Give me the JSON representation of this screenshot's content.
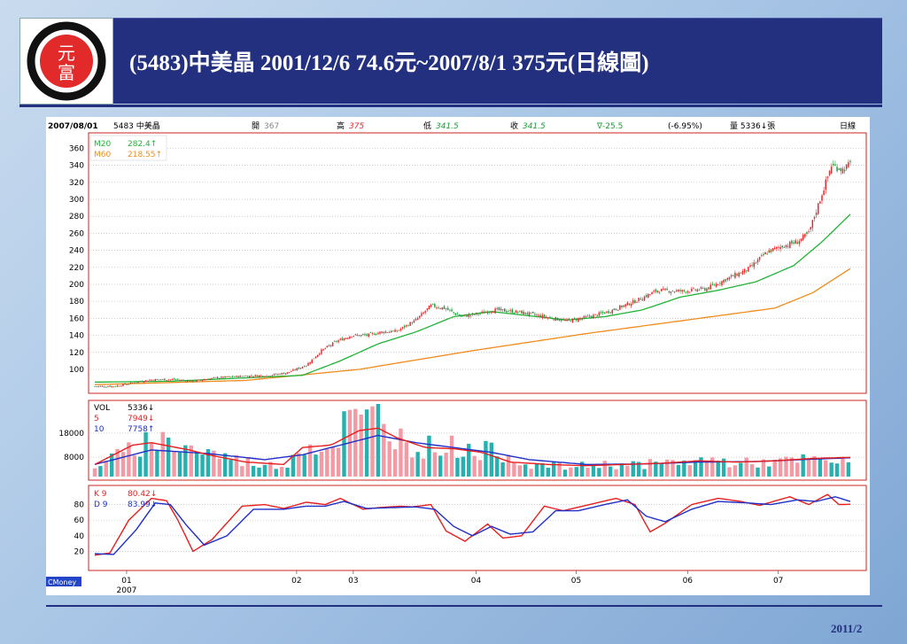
{
  "slide": {
    "title": "(5483)中美晶 2001/12/6  74.6元~2007/8/1 375元(日線圖)",
    "footer_date": "2011/2",
    "logo_text_top": "元",
    "logo_text_bottom": "富"
  },
  "colors": {
    "up": "#e8262b",
    "down": "#1b9a3a",
    "ma20": "#22b336",
    "ma60": "#f08c1e",
    "vol_bar": "#f49aa4",
    "vol_bar_down": "#27b0b0",
    "vol_ma5": "#e81e1e",
    "vol_ma10": "#1f2fc8",
    "k": "#e81e1e",
    "d": "#1f2fc8"
  },
  "chart_data": {
    "type": "candlestick",
    "header": {
      "date": "2007/08/01",
      "stock": "5483 中美晶",
      "open_label": "開",
      "open": "367",
      "high_label": "高",
      "high": "375",
      "low_label": "低",
      "low": "341.5",
      "close_label": "收",
      "close": "341.5",
      "change": "∇-25.5",
      "change_pct": "(-6.95%)",
      "volume_label": "量 5336↓張",
      "period": "日線"
    },
    "price": {
      "ylim": [
        76,
        374
      ],
      "yticks": [
        100,
        120,
        140,
        160,
        180,
        200,
        220,
        240,
        260,
        280,
        300,
        320,
        340,
        360
      ],
      "legend": [
        {
          "name": "M20",
          "value": "282.4↑"
        },
        {
          "name": "M60",
          "value": "218.55↑"
        }
      ],
      "close_anchors": [
        [
          0,
          80
        ],
        [
          10,
          80
        ],
        [
          20,
          84
        ],
        [
          30,
          88
        ],
        [
          42,
          88
        ],
        [
          52,
          86
        ],
        [
          64,
          90
        ],
        [
          78,
          92
        ],
        [
          92,
          93
        ],
        [
          102,
          96
        ],
        [
          112,
          105
        ],
        [
          120,
          122
        ],
        [
          128,
          133
        ],
        [
          136,
          140
        ],
        [
          144,
          140
        ],
        [
          152,
          144
        ],
        [
          160,
          145
        ],
        [
          170,
          158
        ],
        [
          178,
          175
        ],
        [
          185,
          172
        ],
        [
          194,
          162
        ],
        [
          202,
          165
        ],
        [
          212,
          170
        ],
        [
          226,
          167
        ],
        [
          238,
          162
        ],
        [
          250,
          157
        ],
        [
          262,
          162
        ],
        [
          272,
          168
        ],
        [
          286,
          180
        ],
        [
          298,
          193
        ],
        [
          312,
          192
        ],
        [
          324,
          195
        ],
        [
          336,
          208
        ],
        [
          346,
          218
        ],
        [
          356,
          238
        ],
        [
          364,
          245
        ],
        [
          372,
          250
        ],
        [
          378,
          260
        ],
        [
          384,
          300
        ],
        [
          390,
          340
        ],
        [
          396,
          335
        ],
        [
          400,
          341.5
        ]
      ],
      "ma20_anchors": [
        [
          0,
          85
        ],
        [
          40,
          86
        ],
        [
          80,
          90
        ],
        [
          110,
          93
        ],
        [
          130,
          110
        ],
        [
          150,
          130
        ],
        [
          170,
          144
        ],
        [
          190,
          162
        ],
        [
          210,
          168
        ],
        [
          230,
          163
        ],
        [
          250,
          158
        ],
        [
          270,
          162
        ],
        [
          290,
          170
        ],
        [
          310,
          185
        ],
        [
          330,
          193
        ],
        [
          350,
          203
        ],
        [
          370,
          222
        ],
        [
          385,
          250
        ],
        [
          400,
          282.4
        ]
      ],
      "ma60_anchors": [
        [
          0,
          82
        ],
        [
          80,
          87
        ],
        [
          140,
          100
        ],
        [
          200,
          122
        ],
        [
          260,
          142
        ],
        [
          320,
          160
        ],
        [
          360,
          172
        ],
        [
          380,
          190
        ],
        [
          400,
          218.55
        ]
      ]
    },
    "volume": {
      "ylim": [
        0,
        30000
      ],
      "yticks": [
        8000,
        18000
      ],
      "legend": [
        {
          "name": "VOL",
          "value": "5336↓"
        },
        {
          "name": "5",
          "value": "7949↓"
        },
        {
          "name": "10",
          "value": "7758↑"
        }
      ],
      "vol_anchors": [
        [
          0,
          4500
        ],
        [
          20,
          11000
        ],
        [
          30,
          16000
        ],
        [
          50,
          12000
        ],
        [
          60,
          10000
        ],
        [
          80,
          6000
        ],
        [
          100,
          4000
        ],
        [
          110,
          14000
        ],
        [
          125,
          11000
        ],
        [
          135,
          26000
        ],
        [
          140,
          20000
        ],
        [
          150,
          27000
        ],
        [
          158,
          18000
        ],
        [
          170,
          12000
        ],
        [
          185,
          13000
        ],
        [
          200,
          11000
        ],
        [
          215,
          10000
        ],
        [
          230,
          5000
        ],
        [
          250,
          4000
        ],
        [
          270,
          5000
        ],
        [
          290,
          5000
        ],
        [
          310,
          6000
        ],
        [
          325,
          7000
        ],
        [
          340,
          5500
        ],
        [
          360,
          6000
        ],
        [
          380,
          7000
        ],
        [
          400,
          5336
        ]
      ],
      "ma5_anchors": [
        [
          0,
          5000
        ],
        [
          20,
          13000
        ],
        [
          30,
          14000
        ],
        [
          50,
          11000
        ],
        [
          60,
          9000
        ],
        [
          80,
          6000
        ],
        [
          100,
          5000
        ],
        [
          110,
          12000
        ],
        [
          125,
          13000
        ],
        [
          140,
          19000
        ],
        [
          150,
          20000
        ],
        [
          160,
          16000
        ],
        [
          175,
          12000
        ],
        [
          190,
          11500
        ],
        [
          205,
          10000
        ],
        [
          220,
          6000
        ],
        [
          240,
          5000
        ],
        [
          260,
          4500
        ],
        [
          280,
          5000
        ],
        [
          300,
          5500
        ],
        [
          320,
          6500
        ],
        [
          340,
          6000
        ],
        [
          360,
          6500
        ],
        [
          380,
          7500
        ],
        [
          400,
          7949
        ]
      ],
      "ma10_anchors": [
        [
          0,
          5000
        ],
        [
          30,
          11000
        ],
        [
          60,
          9500
        ],
        [
          90,
          7000
        ],
        [
          110,
          9000
        ],
        [
          130,
          13000
        ],
        [
          150,
          17000
        ],
        [
          170,
          14000
        ],
        [
          190,
          12000
        ],
        [
          210,
          10000
        ],
        [
          230,
          7000
        ],
        [
          260,
          5000
        ],
        [
          290,
          5200
        ],
        [
          320,
          6000
        ],
        [
          350,
          6200
        ],
        [
          380,
          7200
        ],
        [
          400,
          7758
        ]
      ]
    },
    "kd": {
      "ylim": [
        0,
        100
      ],
      "yticks": [
        20,
        40,
        60,
        80
      ],
      "legend": [
        {
          "name": "K 9",
          "value": "80.42↓"
        },
        {
          "name": "D 9",
          "value": "83.99↓"
        }
      ],
      "k_anchors": [
        [
          0,
          15
        ],
        [
          8,
          18
        ],
        [
          18,
          60
        ],
        [
          30,
          88
        ],
        [
          38,
          85
        ],
        [
          44,
          60
        ],
        [
          52,
          20
        ],
        [
          62,
          35
        ],
        [
          78,
          78
        ],
        [
          90,
          80
        ],
        [
          100,
          75
        ],
        [
          112,
          83
        ],
        [
          122,
          80
        ],
        [
          130,
          88
        ],
        [
          142,
          74
        ],
        [
          150,
          76
        ],
        [
          162,
          78
        ],
        [
          168,
          77
        ],
        [
          178,
          80
        ],
        [
          186,
          46
        ],
        [
          196,
          33
        ],
        [
          208,
          55
        ],
        [
          216,
          37
        ],
        [
          226,
          40
        ],
        [
          238,
          78
        ],
        [
          248,
          72
        ],
        [
          262,
          80
        ],
        [
          276,
          88
        ],
        [
          286,
          80
        ],
        [
          294,
          45
        ],
        [
          302,
          56
        ],
        [
          316,
          80
        ],
        [
          330,
          88
        ],
        [
          342,
          84
        ],
        [
          352,
          79
        ],
        [
          368,
          90
        ],
        [
          378,
          80
        ],
        [
          388,
          93
        ],
        [
          394,
          80
        ],
        [
          400,
          80.42
        ]
      ],
      "d_anchors": [
        [
          0,
          17
        ],
        [
          10,
          16
        ],
        [
          22,
          48
        ],
        [
          32,
          82
        ],
        [
          40,
          80
        ],
        [
          48,
          55
        ],
        [
          58,
          28
        ],
        [
          70,
          40
        ],
        [
          84,
          74
        ],
        [
          100,
          74
        ],
        [
          112,
          78
        ],
        [
          122,
          78
        ],
        [
          132,
          84
        ],
        [
          144,
          75
        ],
        [
          156,
          76
        ],
        [
          170,
          77
        ],
        [
          180,
          74
        ],
        [
          190,
          52
        ],
        [
          200,
          40
        ],
        [
          210,
          52
        ],
        [
          220,
          42
        ],
        [
          232,
          45
        ],
        [
          244,
          72
        ],
        [
          256,
          72
        ],
        [
          270,
          80
        ],
        [
          282,
          86
        ],
        [
          292,
          65
        ],
        [
          302,
          58
        ],
        [
          316,
          74
        ],
        [
          330,
          84
        ],
        [
          346,
          82
        ],
        [
          358,
          80
        ],
        [
          372,
          86
        ],
        [
          382,
          84
        ],
        [
          392,
          90
        ],
        [
          400,
          83.99
        ]
      ]
    },
    "x_axis": {
      "labels": [
        {
          "text": "01",
          "year": "2007"
        },
        {
          "text": "02",
          "year": ""
        },
        {
          "text": "03",
          "year": ""
        },
        {
          "text": "04",
          "year": ""
        },
        {
          "text": "05",
          "year": ""
        },
        {
          "text": "06",
          "year": ""
        },
        {
          "text": "07",
          "year": ""
        }
      ]
    },
    "source_label": "CMoney"
  }
}
